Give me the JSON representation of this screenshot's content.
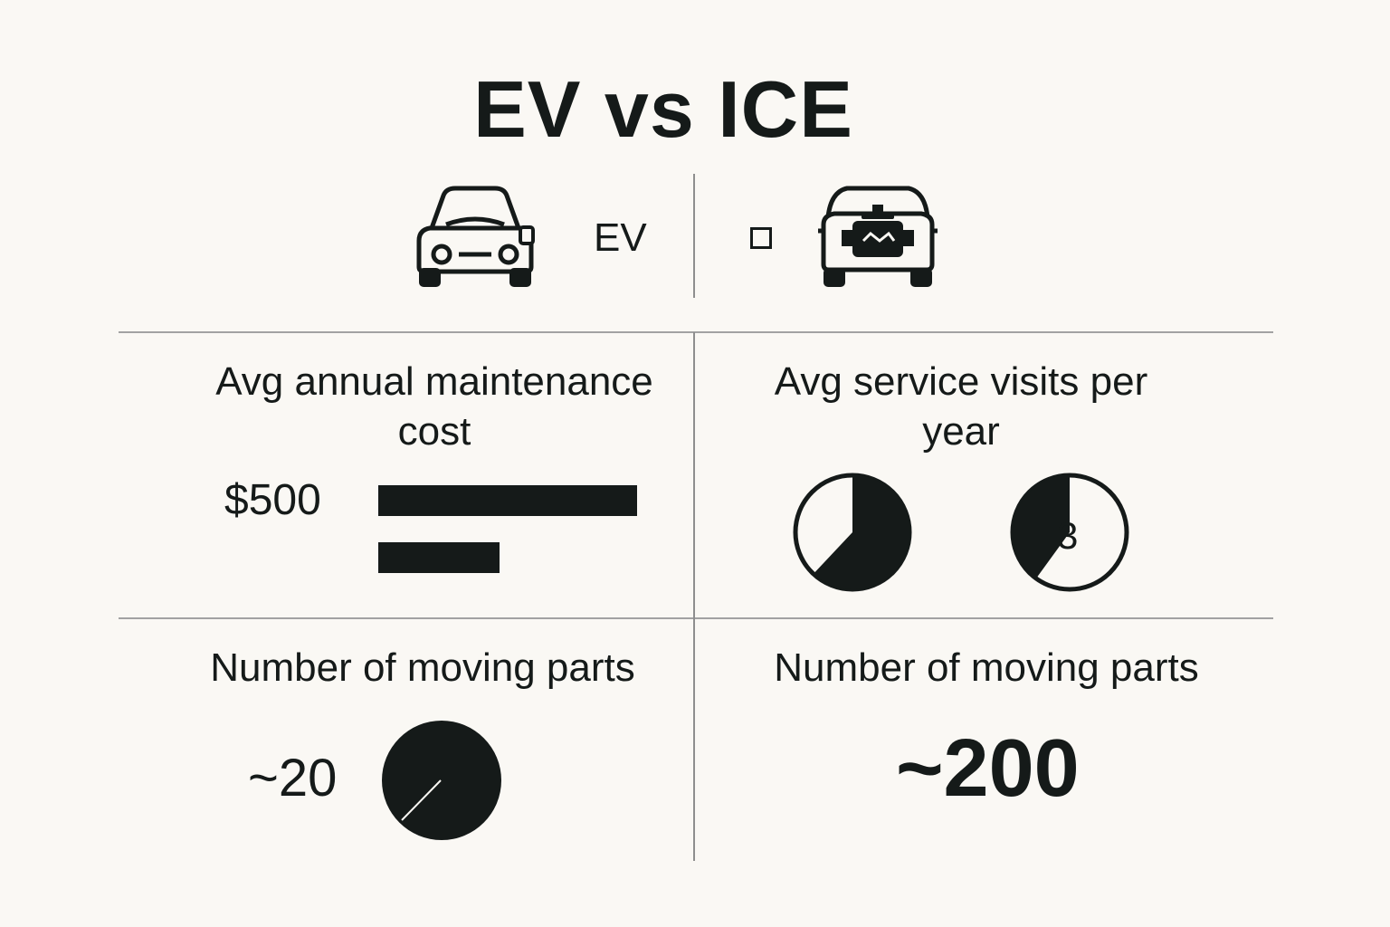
{
  "title": "EV vs ICE",
  "legend": {
    "ev_label": "EV",
    "ev_icon": "car-front-icon",
    "ice_icon": "car-engine-icon"
  },
  "panels": {
    "maintenance": {
      "label": "Avg annual maintenance cost",
      "value_label": "$500",
      "bars": [
        {
          "name": "bar-1",
          "value_fraction": 1.0
        },
        {
          "name": "bar-2",
          "value_fraction": 0.47
        }
      ]
    },
    "service_visits": {
      "label": "Avg service visits per year",
      "pies": [
        {
          "name": "pie-1",
          "filled_fraction": 0.62,
          "label": ""
        },
        {
          "name": "pie-2",
          "filled_fraction": 0.4,
          "label": "3"
        }
      ]
    },
    "moving_parts_ev": {
      "label": "Number of moving parts",
      "value": "~20"
    },
    "moving_parts_ice": {
      "label": "Number of moving parts",
      "value": "~200"
    }
  },
  "colors": {
    "background": "#faf8f4",
    "ink": "#151a19",
    "divider": "#a2a2a2"
  }
}
